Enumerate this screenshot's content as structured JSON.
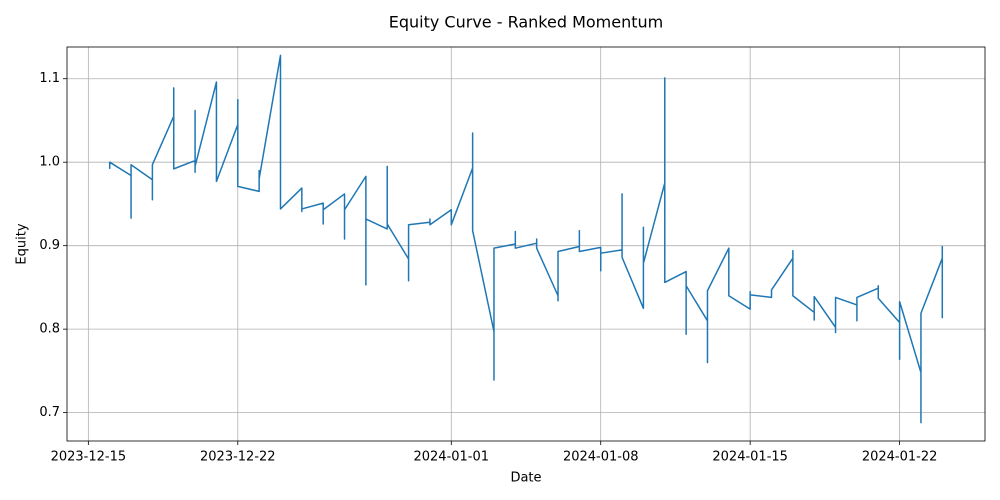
{
  "chart_data": {
    "type": "line",
    "title": "Equity Curve - Ranked Momentum",
    "x_label": "Date",
    "y_label": "Equity",
    "color": "#1f77b4",
    "grid": true,
    "x": [
      "2023-12-16",
      "2023-12-16",
      "2023-12-17",
      "2023-12-17",
      "2023-12-17",
      "2023-12-18",
      "2023-12-18",
      "2023-12-18",
      "2023-12-19",
      "2023-12-19",
      "2023-12-19",
      "2023-12-20",
      "2023-12-20",
      "2023-12-20",
      "2023-12-20",
      "2023-12-21",
      "2023-12-21",
      "2023-12-22",
      "2023-12-22",
      "2023-12-22",
      "2023-12-23",
      "2023-12-23",
      "2023-12-23",
      "2023-12-23",
      "2023-12-24",
      "2023-12-24",
      "2023-12-25",
      "2023-12-25",
      "2023-12-25",
      "2023-12-26",
      "2023-12-26",
      "2023-12-26",
      "2023-12-27",
      "2023-12-27",
      "2023-12-27",
      "2023-12-28",
      "2023-12-28",
      "2023-12-28",
      "2023-12-29",
      "2023-12-29",
      "2023-12-29",
      "2023-12-30",
      "2023-12-30",
      "2023-12-30",
      "2023-12-31",
      "2023-12-31",
      "2023-12-31",
      "2024-01-01",
      "2024-01-01",
      "2024-01-02",
      "2024-01-02",
      "2024-01-02",
      "2024-01-03",
      "2024-01-03",
      "2024-01-03",
      "2024-01-04",
      "2024-01-04",
      "2024-01-04",
      "2024-01-05",
      "2024-01-05",
      "2024-01-05",
      "2024-01-06",
      "2024-01-06",
      "2024-01-06",
      "2024-01-07",
      "2024-01-07",
      "2024-01-07",
      "2024-01-08",
      "2024-01-08",
      "2024-01-08",
      "2024-01-09",
      "2024-01-09",
      "2024-01-09",
      "2024-01-10",
      "2024-01-10",
      "2024-01-10",
      "2024-01-11",
      "2024-01-11",
      "2024-01-11",
      "2024-01-12",
      "2024-01-12",
      "2024-01-12",
      "2024-01-13",
      "2024-01-13",
      "2024-01-13",
      "2024-01-14",
      "2024-01-14",
      "2024-01-15",
      "2024-01-15",
      "2024-01-15",
      "2024-01-16",
      "2024-01-16",
      "2024-01-17",
      "2024-01-17",
      "2024-01-17",
      "2024-01-18",
      "2024-01-18",
      "2024-01-18",
      "2024-01-19",
      "2024-01-19",
      "2024-01-19",
      "2024-01-20",
      "2024-01-20",
      "2024-01-20",
      "2024-01-21",
      "2024-01-21",
      "2024-01-21",
      "2024-01-22",
      "2024-01-22",
      "2024-01-22",
      "2024-01-23",
      "2024-01-23",
      "2024-01-23",
      "2024-01-24",
      "2024-01-24",
      "2024-01-24"
    ],
    "values": [
      0.992,
      1.0,
      0.984,
      0.933,
      0.997,
      0.979,
      0.955,
      0.997,
      1.055,
      1.089,
      0.992,
      1.002,
      1.062,
      0.988,
      0.995,
      1.096,
      0.977,
      1.045,
      1.075,
      0.971,
      0.965,
      0.99,
      0.975,
      0.98,
      1.128,
      0.944,
      0.969,
      0.941,
      0.944,
      0.951,
      0.926,
      0.943,
      0.962,
      0.908,
      0.943,
      0.983,
      0.853,
      0.932,
      0.92,
      0.995,
      0.926,
      0.884,
      0.858,
      0.925,
      0.928,
      0.932,
      0.925,
      0.943,
      0.925,
      0.993,
      1.035,
      0.918,
      0.797,
      0.739,
      0.897,
      0.902,
      0.917,
      0.897,
      0.903,
      0.908,
      0.897,
      0.84,
      0.834,
      0.893,
      0.899,
      0.918,
      0.893,
      0.898,
      0.87,
      0.891,
      0.895,
      0.962,
      0.886,
      0.825,
      0.922,
      0.879,
      0.975,
      1.101,
      0.856,
      0.869,
      0.794,
      0.852,
      0.81,
      0.76,
      0.846,
      0.897,
      0.84,
      0.824,
      0.845,
      0.841,
      0.838,
      0.847,
      0.885,
      0.894,
      0.84,
      0.82,
      0.811,
      0.839,
      0.802,
      0.796,
      0.838,
      0.829,
      0.81,
      0.838,
      0.849,
      0.852,
      0.837,
      0.808,
      0.764,
      0.833,
      0.748,
      0.688,
      0.819,
      0.885,
      0.899,
      0.813
    ],
    "xlim": [
      "2023-12-14",
      "2024-01-26"
    ],
    "xticks": [
      "2023-12-15",
      "2023-12-22",
      "2024-01-01",
      "2024-01-08",
      "2024-01-15",
      "2024-01-22"
    ],
    "ylim": [
      0.666,
      1.138
    ],
    "yticks": [
      0.7,
      0.8,
      0.9,
      {
        "value": 1,
        "label": "1.0"
      },
      1.1
    ]
  }
}
